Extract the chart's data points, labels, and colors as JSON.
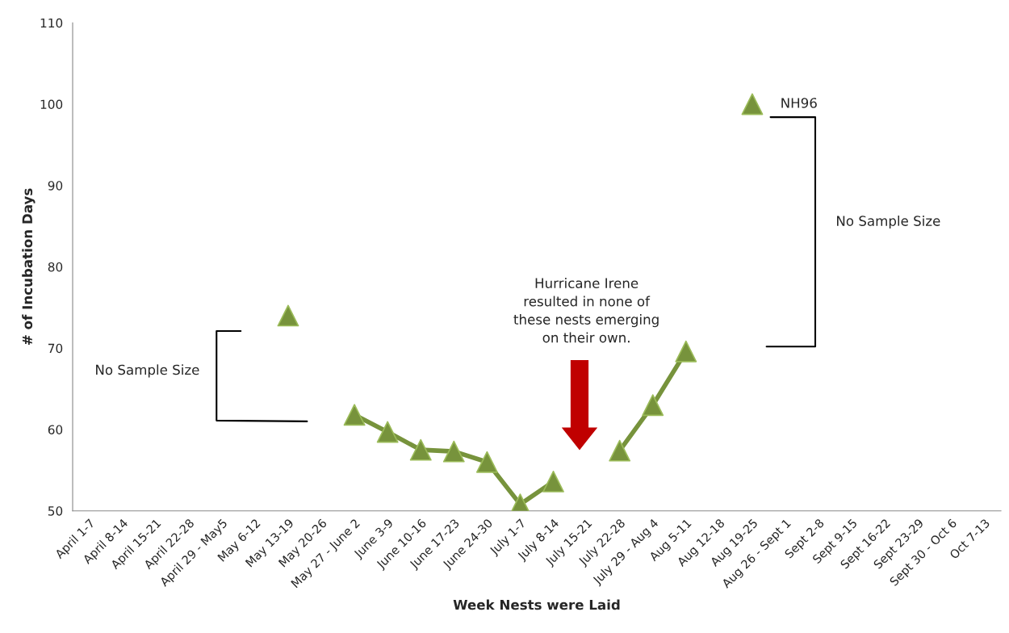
{
  "chart_data": {
    "type": "line",
    "xlabel": "Week Nests were Laid",
    "ylabel": "# of Incubation Days",
    "categories": [
      "April 1-7",
      "April 8-14",
      "April 15-21",
      "April 22-28",
      "April 29 - May5",
      "May 6-12",
      "May 13-19",
      "May 20-26",
      "May 27 - June 2",
      "June 3-9",
      "June 10-16",
      "June 17-23",
      "June 24-30",
      "July 1-7",
      "July 8-14",
      "July 15-21",
      "July 22-28",
      "July 29 - Aug 4",
      "Aug 5-11",
      "Aug 12-18",
      "Aug 19-25",
      "Aug 26 - Sept 1",
      "Sept 2-8",
      "Sept 9-15",
      "Sept 16-22",
      "Sept 23-29",
      "Sept 30 - Oct 6",
      "Oct 7-13"
    ],
    "series": [
      {
        "color": "#77933c",
        "values": [
          null,
          null,
          null,
          null,
          null,
          null,
          74,
          null,
          61.8,
          59.7,
          57.5,
          57.3,
          56,
          50.8,
          53.6,
          null,
          57.4,
          63,
          69.6,
          null,
          100,
          null,
          null,
          null,
          null,
          null,
          null,
          null
        ]
      }
    ],
    "ylim": [
      50,
      110
    ],
    "yticks": [
      50,
      60,
      70,
      80,
      90,
      100,
      110
    ],
    "grid": false,
    "marker": "triangle",
    "line_style": "solid",
    "annotations": [
      "No Sample Size",
      "No Sample Size",
      "Hurricane Irene\nresulted in none of\nthese nests emerging\non their own.",
      {
        "text": "NH96",
        "x": "Aug 19-25",
        "y": 100
      }
    ]
  }
}
